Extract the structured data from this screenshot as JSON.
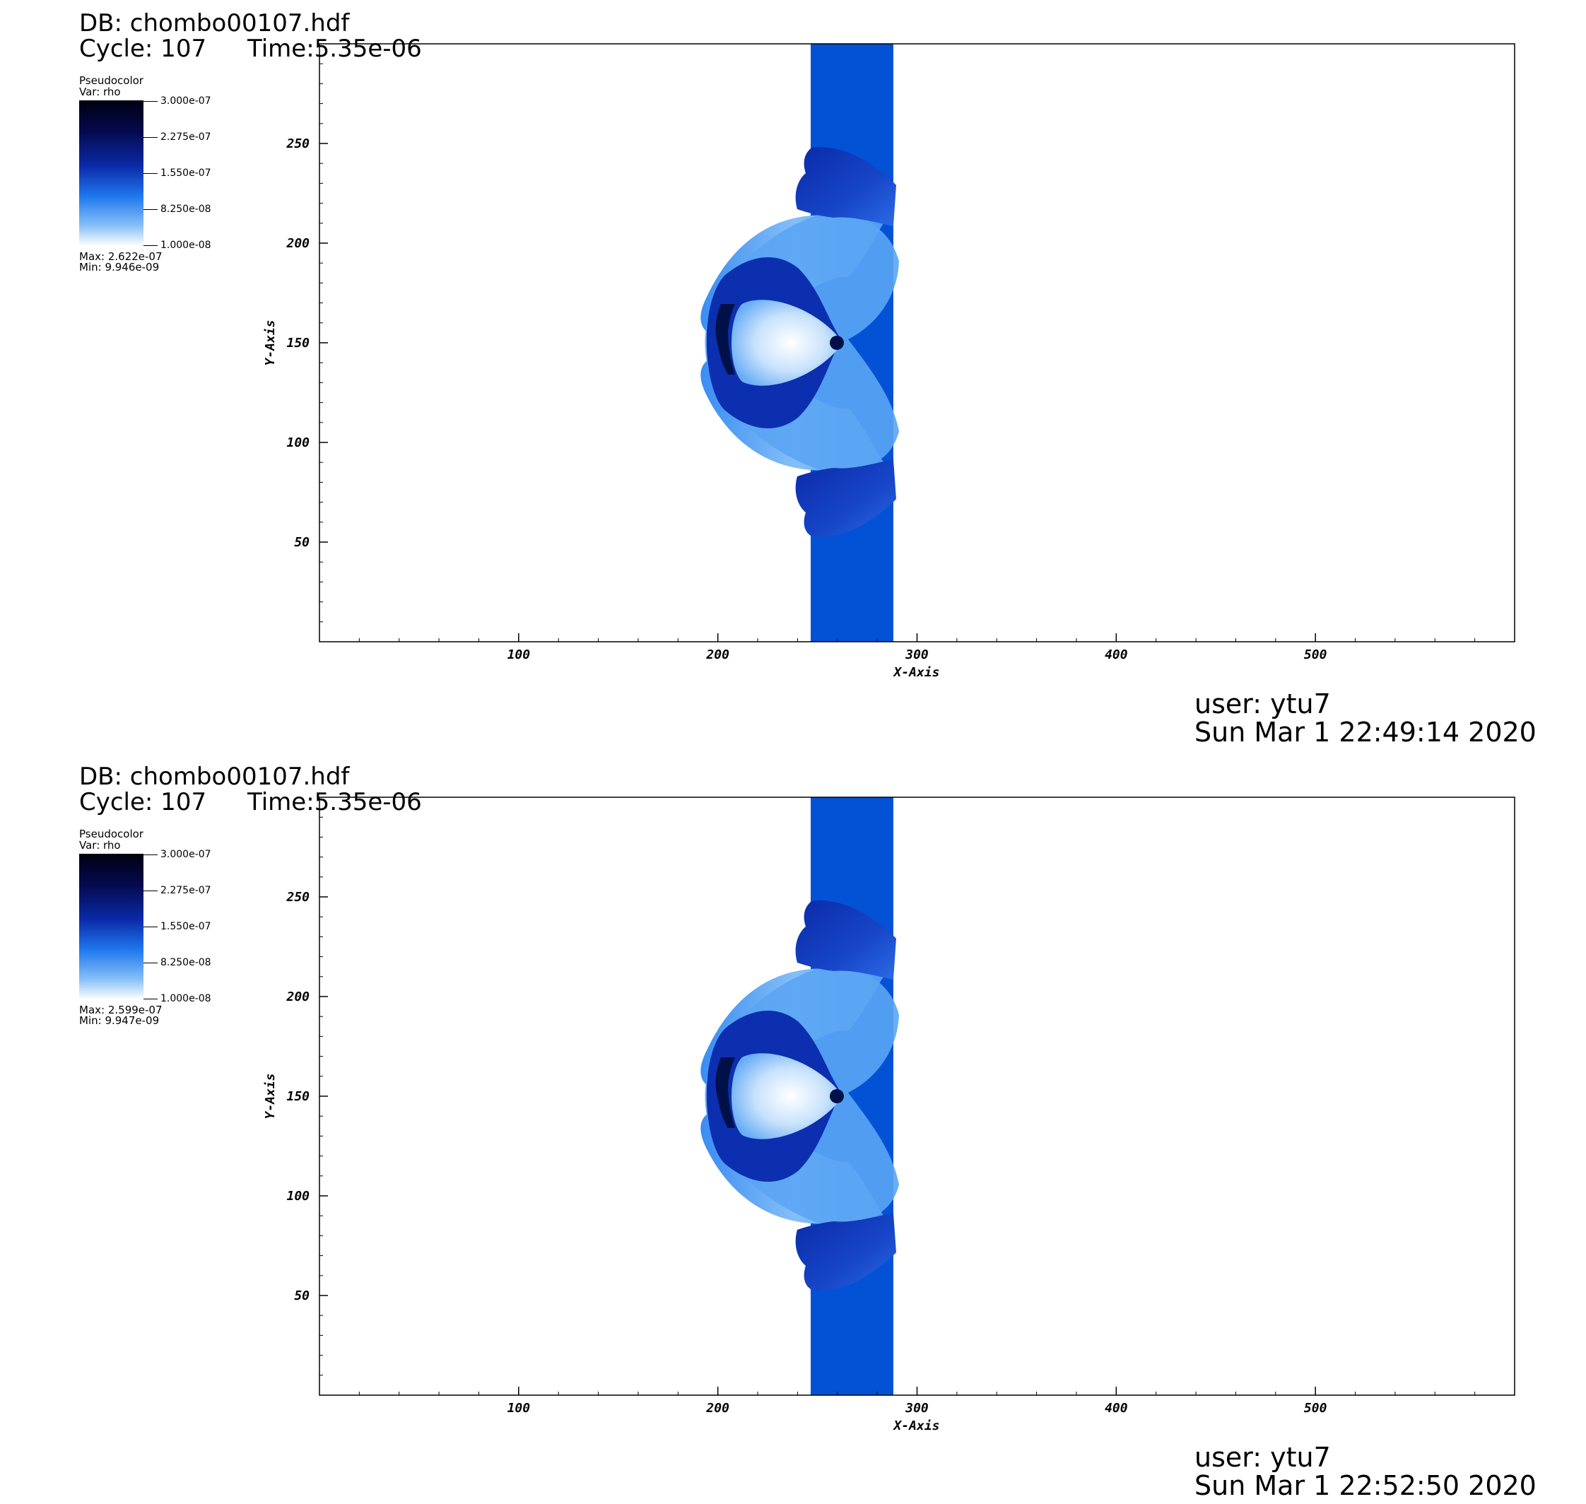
{
  "panels": [
    {
      "db": "DB: chombo00107.hdf",
      "cycle": "Cycle: 107",
      "time": "Time:5.35e-06",
      "legend": {
        "title": "Pseudocolor",
        "var": "Var: rho",
        "ticks": [
          "3.000e-07",
          "2.275e-07",
          "1.550e-07",
          "8.250e-08",
          "1.000e-08"
        ],
        "max": "Max: 2.622e-07",
        "min": "Min: 9.946e-09"
      },
      "user": "user: ytu7",
      "date": "Sun Mar  1 22:49:14 2020"
    },
    {
      "db": "DB: chombo00107.hdf",
      "cycle": "Cycle: 107",
      "time": "Time:5.35e-06",
      "legend": {
        "title": "Pseudocolor",
        "var": "Var: rho",
        "ticks": [
          "3.000e-07",
          "2.275e-07",
          "1.550e-07",
          "8.250e-08",
          "1.000e-08"
        ],
        "max": "Max: 2.599e-07",
        "min": "Min: 9.947e-09"
      },
      "user": "user: ytu7",
      "date": "Sun Mar  1 22:52:50 2020"
    }
  ],
  "chart_data": [
    {
      "type": "heatmap",
      "title": "",
      "xlabel": "X-Axis",
      "ylabel": "Y-Axis",
      "xlim": [
        0,
        600
      ],
      "ylim": [
        0,
        300
      ],
      "x_ticks": [
        100,
        200,
        300,
        400,
        500
      ],
      "y_ticks": [
        50,
        100,
        150,
        200,
        250
      ],
      "variable": "rho",
      "colorbar_range": [
        1e-08,
        3e-07
      ],
      "data_max": 2.622e-07,
      "data_min": 9.946e-09
    },
    {
      "type": "heatmap",
      "title": "",
      "xlabel": "X-Axis",
      "ylabel": "Y-Axis",
      "xlim": [
        0,
        600
      ],
      "ylim": [
        0,
        300
      ],
      "x_ticks": [
        100,
        200,
        300,
        400,
        500
      ],
      "y_ticks": [
        50,
        100,
        150,
        200,
        250
      ],
      "variable": "rho",
      "colorbar_range": [
        1e-08,
        3e-07
      ],
      "data_max": 2.599e-07,
      "data_min": 9.947e-09
    }
  ]
}
